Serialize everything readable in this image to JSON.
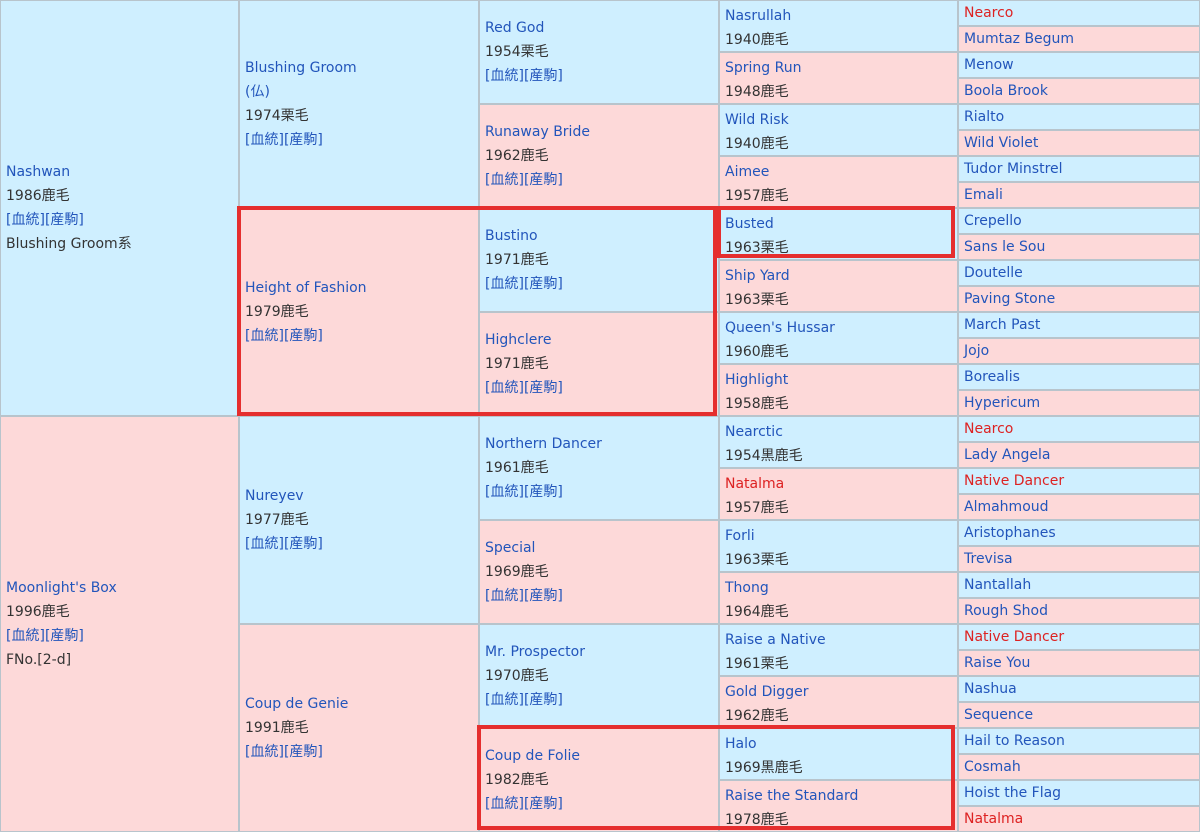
{
  "gen1": [
    {
      "name": "Nashwan",
      "year": "1986",
      "color": "鹿毛",
      "links": [
        "[血統]",
        "[産駒]"
      ],
      "extra": "Blushing Groom系",
      "sex": "m"
    },
    {
      "name": "Moonlight's Box",
      "year": "1996",
      "color": "鹿毛",
      "links": [
        "[血統]",
        "[産駒]"
      ],
      "extra": "FNo.[2-d]",
      "sex": "f"
    }
  ],
  "gen2": [
    {
      "name": "Blushing Groom",
      "note": "(仏)",
      "year": "1974",
      "color": "栗毛",
      "links": [
        "[血統]",
        "[産駒]"
      ],
      "sex": "m"
    },
    {
      "name": "Height of Fashion",
      "year": "1979",
      "color": "鹿毛",
      "links": [
        "[血統]",
        "[産駒]"
      ],
      "sex": "f"
    },
    {
      "name": "Nureyev",
      "year": "1977",
      "color": "鹿毛",
      "links": [
        "[血統]",
        "[産駒]"
      ],
      "sex": "m"
    },
    {
      "name": "Coup de Genie",
      "year": "1991",
      "color": "鹿毛",
      "links": [
        "[血統]",
        "[産駒]"
      ],
      "sex": "f"
    }
  ],
  "gen3": [
    {
      "name": "Red God",
      "year": "1954",
      "color": "栗毛",
      "links": [
        "[血統]",
        "[産駒]"
      ],
      "sex": "m"
    },
    {
      "name": "Runaway Bride",
      "year": "1962",
      "color": "鹿毛",
      "links": [
        "[血統]",
        "[産駒]"
      ],
      "sex": "f"
    },
    {
      "name": "Bustino",
      "year": "1971",
      "color": "鹿毛",
      "links": [
        "[血統]",
        "[産駒]"
      ],
      "sex": "m"
    },
    {
      "name": "Highclere",
      "year": "1971",
      "color": "鹿毛",
      "links": [
        "[血統]",
        "[産駒]"
      ],
      "sex": "f"
    },
    {
      "name": "Northern Dancer",
      "year": "1961",
      "color": "鹿毛",
      "links": [
        "[血統]",
        "[産駒]"
      ],
      "sex": "m"
    },
    {
      "name": "Special",
      "year": "1969",
      "color": "鹿毛",
      "links": [
        "[血統]",
        "[産駒]"
      ],
      "sex": "f"
    },
    {
      "name": "Mr. Prospector",
      "year": "1970",
      "color": "鹿毛",
      "links": [
        "[血統]",
        "[産駒]"
      ],
      "sex": "m"
    },
    {
      "name": "Coup de Folie",
      "year": "1982",
      "color": "鹿毛",
      "links": [
        "[血統]",
        "[産駒]"
      ],
      "sex": "f"
    }
  ],
  "gen4": [
    {
      "name": "Nasrullah",
      "year": "1940",
      "color": "鹿毛",
      "sex": "m"
    },
    {
      "name": "Spring Run",
      "year": "1948",
      "color": "鹿毛",
      "sex": "f"
    },
    {
      "name": "Wild Risk",
      "year": "1940",
      "color": "鹿毛",
      "sex": "m"
    },
    {
      "name": "Aimee",
      "year": "1957",
      "color": "鹿毛",
      "sex": "f"
    },
    {
      "name": "Busted",
      "year": "1963",
      "color": "栗毛",
      "sex": "m"
    },
    {
      "name": "Ship Yard",
      "year": "1963",
      "color": "栗毛",
      "sex": "f"
    },
    {
      "name": "Queen's Hussar",
      "year": "1960",
      "color": "鹿毛",
      "sex": "m"
    },
    {
      "name": "Highlight",
      "year": "1958",
      "color": "鹿毛",
      "sex": "f"
    },
    {
      "name": "Nearctic",
      "year": "1954",
      "color": "黒鹿毛",
      "sex": "m"
    },
    {
      "name": "Natalma",
      "year": "1957",
      "color": "鹿毛",
      "sex": "f",
      "red": true
    },
    {
      "name": "Forli",
      "year": "1963",
      "color": "栗毛",
      "sex": "m"
    },
    {
      "name": "Thong",
      "year": "1964",
      "color": "鹿毛",
      "sex": "f"
    },
    {
      "name": "Raise a Native",
      "year": "1961",
      "color": "栗毛",
      "sex": "m"
    },
    {
      "name": "Gold Digger",
      "year": "1962",
      "color": "鹿毛",
      "sex": "f"
    },
    {
      "name": "Halo",
      "year": "1969",
      "color": "黒鹿毛",
      "sex": "m"
    },
    {
      "name": "Raise the Standard",
      "year": "1978",
      "color": "鹿毛",
      "sex": "f"
    }
  ],
  "gen5": [
    {
      "name": "Nearco",
      "sex": "m",
      "red": true
    },
    {
      "name": "Mumtaz Begum",
      "sex": "f"
    },
    {
      "name": "Menow",
      "sex": "m"
    },
    {
      "name": "Boola Brook",
      "sex": "f"
    },
    {
      "name": "Rialto",
      "sex": "m"
    },
    {
      "name": "Wild Violet",
      "sex": "f"
    },
    {
      "name": "Tudor Minstrel",
      "sex": "m"
    },
    {
      "name": "Emali",
      "sex": "f"
    },
    {
      "name": "Crepello",
      "sex": "m"
    },
    {
      "name": "Sans le Sou",
      "sex": "f"
    },
    {
      "name": "Doutelle",
      "sex": "m"
    },
    {
      "name": "Paving Stone",
      "sex": "f"
    },
    {
      "name": "March Past",
      "sex": "m"
    },
    {
      "name": "Jojo",
      "sex": "f"
    },
    {
      "name": "Borealis",
      "sex": "m"
    },
    {
      "name": "Hypericum",
      "sex": "f"
    },
    {
      "name": "Nearco",
      "sex": "m",
      "red": true
    },
    {
      "name": "Lady Angela",
      "sex": "f"
    },
    {
      "name": "Native Dancer",
      "sex": "m",
      "red": true
    },
    {
      "name": "Almahmoud",
      "sex": "f"
    },
    {
      "name": "Aristophanes",
      "sex": "m"
    },
    {
      "name": "Trevisa",
      "sex": "f"
    },
    {
      "name": "Nantallah",
      "sex": "m"
    },
    {
      "name": "Rough Shod",
      "sex": "f"
    },
    {
      "name": "Native Dancer",
      "sex": "m",
      "red": true
    },
    {
      "name": "Raise You",
      "sex": "f"
    },
    {
      "name": "Nashua",
      "sex": "m"
    },
    {
      "name": "Sequence",
      "sex": "f"
    },
    {
      "name": "Hail to Reason",
      "sex": "m"
    },
    {
      "name": "Cosmah",
      "sex": "f"
    },
    {
      "name": "Hoist the Flag",
      "sex": "m"
    },
    {
      "name": "Natalma",
      "sex": "f",
      "red": true
    }
  ],
  "colors": {
    "male_bg": "#cfefff",
    "female_bg": "#fdd9d9",
    "link": "#2255bb",
    "highlight_red": "#dd2222",
    "box_border": "#e52e2e"
  }
}
